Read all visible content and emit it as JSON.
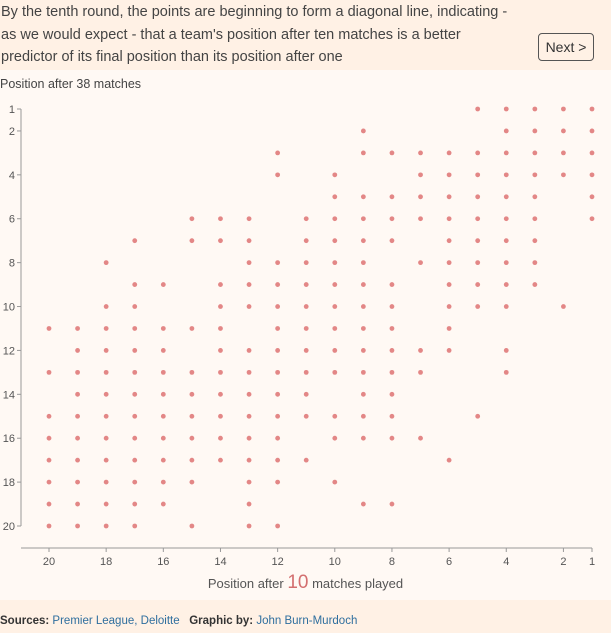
{
  "caption": "By the tenth round, the points are beginning to form a diagonal line, indicating - as we would expect - that a team's position after ten matches is a better predictor of its final position than its position after one",
  "next_label": "Next >",
  "footer": {
    "sources_label": "Sources:",
    "sources_value": "Premier League, Deloitte",
    "graphic_label": "Graphic by:",
    "graphic_value": "John Burn-Murdoch"
  },
  "colors": {
    "dot": "#e07a7a",
    "axis": "#999999",
    "accent": "#d36f6f"
  },
  "chart_data": {
    "type": "scatter",
    "ylabel": "Position after 38 matches",
    "xlabel_prefix": "Position after",
    "xlabel_number": "10",
    "xlabel_suffix": "matches played",
    "x_range": [
      20,
      1
    ],
    "y_range": [
      1,
      20
    ],
    "x_ticks": [
      20,
      18,
      16,
      14,
      12,
      10,
      8,
      6,
      4,
      2,
      1
    ],
    "y_ticks": [
      1,
      2,
      4,
      6,
      8,
      10,
      12,
      14,
      16,
      18,
      20
    ],
    "columns": [
      {
        "x": 20,
        "y": [
          11,
          13,
          15,
          16,
          17,
          18,
          19,
          20
        ]
      },
      {
        "x": 19,
        "y": [
          11,
          12,
          13,
          14,
          15,
          16,
          17,
          18,
          19,
          20
        ]
      },
      {
        "x": 18,
        "y": [
          8,
          10,
          11,
          12,
          13,
          14,
          15,
          16,
          17,
          18,
          19,
          20
        ]
      },
      {
        "x": 17,
        "y": [
          7,
          9,
          10,
          11,
          12,
          13,
          14,
          15,
          16,
          17,
          18,
          19,
          20
        ]
      },
      {
        "x": 16,
        "y": [
          9,
          11,
          12,
          13,
          14,
          15,
          16,
          17,
          18,
          19
        ]
      },
      {
        "x": 15,
        "y": [
          6,
          7,
          11,
          13,
          14,
          15,
          16,
          17,
          18,
          20
        ]
      },
      {
        "x": 14,
        "y": [
          6,
          7,
          9,
          10,
          11,
          12,
          13,
          14,
          15,
          16,
          17
        ]
      },
      {
        "x": 13,
        "y": [
          6,
          7,
          8,
          9,
          10,
          12,
          13,
          14,
          15,
          16,
          17,
          18,
          19,
          20
        ]
      },
      {
        "x": 12,
        "y": [
          3,
          4,
          8,
          9,
          10,
          11,
          12,
          13,
          14,
          15,
          16,
          17,
          18,
          20
        ]
      },
      {
        "x": 11,
        "y": [
          6,
          7,
          8,
          9,
          10,
          11,
          12,
          13,
          14,
          15,
          17
        ]
      },
      {
        "x": 10,
        "y": [
          4,
          5,
          6,
          7,
          8,
          9,
          10,
          11,
          12,
          13,
          15,
          16,
          18
        ]
      },
      {
        "x": 9,
        "y": [
          2,
          3,
          5,
          6,
          7,
          8,
          9,
          10,
          11,
          12,
          13,
          14,
          15,
          16,
          19
        ]
      },
      {
        "x": 8,
        "y": [
          3,
          5,
          6,
          7,
          9,
          10,
          11,
          12,
          13,
          14,
          15,
          16,
          19
        ]
      },
      {
        "x": 7,
        "y": [
          3,
          4,
          5,
          6,
          8,
          12,
          13,
          16
        ]
      },
      {
        "x": 6,
        "y": [
          3,
          4,
          5,
          6,
          7,
          8,
          9,
          10,
          11,
          12,
          17
        ]
      },
      {
        "x": 5,
        "y": [
          1,
          3,
          4,
          5,
          6,
          7,
          8,
          9,
          10,
          15
        ]
      },
      {
        "x": 4,
        "y": [
          1,
          2,
          3,
          4,
          5,
          6,
          7,
          8,
          9,
          10,
          12,
          13
        ]
      },
      {
        "x": 3,
        "y": [
          1,
          2,
          3,
          4,
          5,
          6,
          7,
          8,
          9
        ]
      },
      {
        "x": 2,
        "y": [
          1,
          2,
          3,
          4,
          10
        ]
      },
      {
        "x": 1,
        "y": [
          1,
          2,
          3,
          4,
          5,
          6
        ]
      }
    ]
  }
}
